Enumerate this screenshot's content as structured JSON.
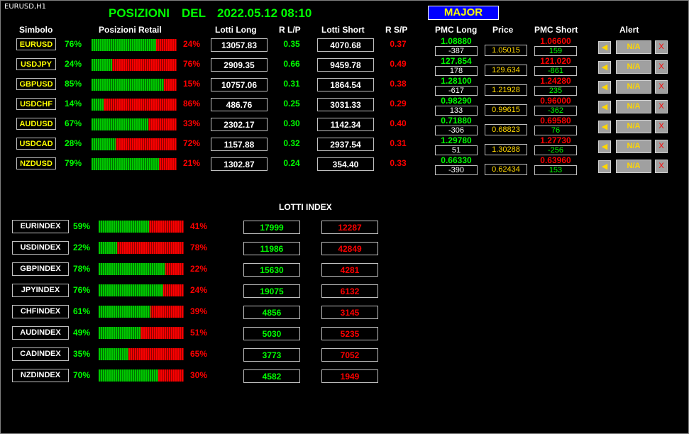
{
  "chart_label": "EURUSD,H1",
  "header": {
    "title_word1": "POSIZIONI",
    "title_word2": "DEL",
    "title_datetime": "2022.05.12 08:10",
    "major_button": "MAJOR"
  },
  "columns": {
    "symbol": "Simbolo",
    "retail": "Posizioni Retail",
    "lots_long": "Lotti Long",
    "ratio_lp": "R L/P",
    "lots_short": "Lotti Short",
    "ratio_sp": "R S/P",
    "pmc_long": "PMC Long",
    "price": "Price",
    "pmc_short": "PMC Short",
    "alert": "Alert"
  },
  "pairs": [
    {
      "symbol": "EURUSD",
      "long_pct": "76%",
      "short_pct": "24%",
      "long_frac": 0.76,
      "lots_long": "13057.83",
      "r_lp": "0.35",
      "lots_short": "4070.68",
      "r_sp": "0.37",
      "pmc_long": "1.08880",
      "pmc_long_diff": "-387",
      "price": "1.05015",
      "pmc_short": "1.06600",
      "pmc_short_diff": "159",
      "alert_value": "N/A"
    },
    {
      "symbol": "USDJPY",
      "long_pct": "24%",
      "short_pct": "76%",
      "long_frac": 0.24,
      "lots_long": "2909.35",
      "r_lp": "0.66",
      "lots_short": "9459.78",
      "r_sp": "0.49",
      "pmc_long": "127.854",
      "pmc_long_diff": "178",
      "price": "129.634",
      "pmc_short": "121.020",
      "pmc_short_diff": "-861",
      "alert_value": "N/A"
    },
    {
      "symbol": "GBPUSD",
      "long_pct": "85%",
      "short_pct": "15%",
      "long_frac": 0.85,
      "lots_long": "10757.06",
      "r_lp": "0.31",
      "lots_short": "1864.54",
      "r_sp": "0.38",
      "pmc_long": "1.28100",
      "pmc_long_diff": "-617",
      "price": "1.21928",
      "pmc_short": "1.24280",
      "pmc_short_diff": "235",
      "alert_value": "N/A"
    },
    {
      "symbol": "USDCHF",
      "long_pct": "14%",
      "short_pct": "86%",
      "long_frac": 0.14,
      "lots_long": "486.76",
      "r_lp": "0.25",
      "lots_short": "3031.33",
      "r_sp": "0.29",
      "pmc_long": "0.98290",
      "pmc_long_diff": "133",
      "price": "0.99615",
      "pmc_short": "0.96000",
      "pmc_short_diff": "-362",
      "alert_value": "N/A"
    },
    {
      "symbol": "AUDUSD",
      "long_pct": "67%",
      "short_pct": "33%",
      "long_frac": 0.67,
      "lots_long": "2302.17",
      "r_lp": "0.30",
      "lots_short": "1142.34",
      "r_sp": "0.40",
      "pmc_long": "0.71880",
      "pmc_long_diff": "-306",
      "price": "0.68823",
      "pmc_short": "0.69580",
      "pmc_short_diff": "76",
      "alert_value": "N/A"
    },
    {
      "symbol": "USDCAD",
      "long_pct": "28%",
      "short_pct": "72%",
      "long_frac": 0.28,
      "lots_long": "1157.88",
      "r_lp": "0.32",
      "lots_short": "2937.54",
      "r_sp": "0.31",
      "pmc_long": "1.29780",
      "pmc_long_diff": "51",
      "price": "1.30288",
      "pmc_short": "1.27730",
      "pmc_short_diff": "-256",
      "alert_value": "N/A"
    },
    {
      "symbol": "NZDUSD",
      "long_pct": "79%",
      "short_pct": "21%",
      "long_frac": 0.79,
      "lots_long": "1302.87",
      "r_lp": "0.24",
      "lots_short": "354.40",
      "r_sp": "0.33",
      "pmc_long": "0.66330",
      "pmc_long_diff": "-390",
      "price": "0.62434",
      "pmc_short": "0.63960",
      "pmc_short_diff": "153",
      "alert_value": "N/A"
    }
  ],
  "alert_icons": {
    "bell": "bell-icon",
    "close": "close-icon",
    "close_glyph": "X"
  },
  "lotti_index_title": "LOTTI INDEX",
  "indices": [
    {
      "name": "EURINDEX",
      "long_pct": "59%",
      "short_pct": "41%",
      "long_frac": 0.59,
      "lots_long": "17999",
      "lots_short": "12287"
    },
    {
      "name": "USDINDEX",
      "long_pct": "22%",
      "short_pct": "78%",
      "long_frac": 0.22,
      "lots_long": "11986",
      "lots_short": "42849"
    },
    {
      "name": "GBPINDEX",
      "long_pct": "78%",
      "short_pct": "22%",
      "long_frac": 0.78,
      "lots_long": "15630",
      "lots_short": "4281"
    },
    {
      "name": "JPYINDEX",
      "long_pct": "76%",
      "short_pct": "24%",
      "long_frac": 0.76,
      "lots_long": "19075",
      "lots_short": "6132"
    },
    {
      "name": "CHFINDEX",
      "long_pct": "61%",
      "short_pct": "39%",
      "long_frac": 0.61,
      "lots_long": "4856",
      "lots_short": "3145"
    },
    {
      "name": "AUDINDEX",
      "long_pct": "49%",
      "short_pct": "51%",
      "long_frac": 0.49,
      "lots_long": "5030",
      "lots_short": "5235"
    },
    {
      "name": "CADINDEX",
      "long_pct": "35%",
      "short_pct": "65%",
      "long_frac": 0.35,
      "lots_long": "3773",
      "lots_short": "7052"
    },
    {
      "name": "NZDINDEX",
      "long_pct": "70%",
      "short_pct": "30%",
      "long_frac": 0.7,
      "lots_long": "4582",
      "lots_short": "1949"
    }
  ],
  "colors": {
    "long": "#00ff00",
    "short": "#ff0000",
    "price": "#ffd700",
    "symbol": "#ffff00",
    "major_bg": "#0000ff"
  }
}
